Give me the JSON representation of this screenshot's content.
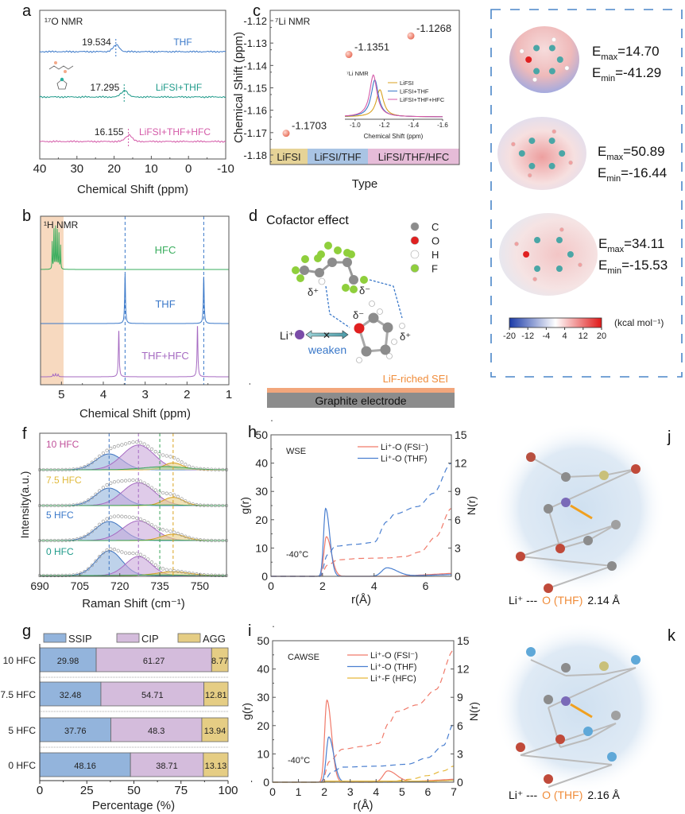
{
  "panel_labels": {
    "a": "a",
    "b": "b",
    "c": "c",
    "d": "d",
    "f": "f",
    "g": "g",
    "h": "h",
    "i": "i",
    "j": "j",
    "k": "k"
  },
  "chart_data": [
    {
      "type": "line",
      "panel": "a",
      "title": "¹⁷O NMR",
      "xlabel": "Chemical Shift (ppm)",
      "xlim": [
        40,
        -10
      ],
      "xticks": [
        "40",
        "30",
        "20",
        "10",
        "0",
        "-10"
      ],
      "series": [
        {
          "name": "THF",
          "peak_ppm": 19.534,
          "peak_label": "19.534",
          "color": "#3a78c9"
        },
        {
          "name": "LiFSI+THF",
          "peak_ppm": 17.295,
          "peak_label": "17.295",
          "color": "#1f9a8a"
        },
        {
          "name": "LiFSI+THF+HFC",
          "peak_ppm": 16.155,
          "peak_label": "16.155",
          "color": "#d45aa8"
        }
      ]
    },
    {
      "type": "scatter",
      "panel": "c",
      "title": "⁷Li NMR",
      "xlabel": "Type",
      "ylabel": "Chemical Shift (ppm)",
      "ylim": [
        -1.184,
        -1.115
      ],
      "yticks": [
        "-1.12",
        "-1.13",
        "-1.14",
        "-1.15",
        "-1.16",
        "-1.17",
        "-1.18"
      ],
      "categories": [
        "LiFSI",
        "LiFSI/THF",
        "LiFSI/THF/HFC"
      ],
      "category_colors": [
        "#e6d397",
        "#a9c4e4",
        "#e6bcd8"
      ],
      "values": [
        -1.1703,
        -1.1351,
        -1.1268
      ],
      "value_labels": [
        "-1.1703",
        "-1.1351",
        "-1.1268"
      ],
      "point_color": "#f08c7a",
      "inset": {
        "type": "line",
        "title": "⁷Li NMR",
        "xlabel": "Chemical Shift (ppm)",
        "xlim": [
          -0.93,
          -1.6
        ],
        "xticks": [
          "-1.0",
          "-1.2",
          "-1.4",
          "-1.6"
        ],
        "series": [
          {
            "name": "LiFSI",
            "peak_ppm": -1.17,
            "height": 0.55,
            "color": "#d9a21f"
          },
          {
            "name": "LiFSI+THF",
            "peak_ppm": -1.135,
            "height": 0.75,
            "color": "#3a78c9"
          },
          {
            "name": "LiFSI+THF+HFC",
            "peak_ppm": -1.125,
            "height": 0.85,
            "color": "#d45aa8"
          }
        ]
      }
    },
    {
      "type": "line",
      "panel": "b",
      "title": "¹H NMR",
      "xlabel": "Chemical Shift (ppm)",
      "xlim": [
        5.5,
        1
      ],
      "xticks": [
        "5",
        "4",
        "3",
        "2",
        "1"
      ],
      "shaded_region_ppm": [
        5.5,
        4.95
      ],
      "reference_lines_ppm": [
        3.48,
        1.6
      ],
      "series": [
        {
          "name": "HFC",
          "color": "#3aae5e",
          "peaks_ppm": [
            5.22,
            5.18,
            5.14,
            5.1,
            5.06,
            5.02
          ],
          "heights": [
            0.55,
            0.8,
            0.85,
            0.78,
            0.72,
            0.48
          ]
        },
        {
          "name": "THF",
          "color": "#3a78c9",
          "peaks_ppm": [
            3.48,
            1.6
          ],
          "heights": [
            1,
            0.95
          ]
        },
        {
          "name": "THF+HFC",
          "color": "#a66bc2",
          "peaks_ppm": [
            3.63,
            1.75,
            5.2,
            5.14,
            5.08
          ],
          "heights": [
            0.95,
            1.05,
            0.05,
            0.06,
            0.05
          ]
        }
      ]
    },
    {
      "type": "area",
      "panel": "f",
      "xlabel": "Raman Shift (cm⁻¹)",
      "ylabel": "Intensity(a.u.)",
      "xlim": [
        690,
        760
      ],
      "xticks": [
        "690",
        "705",
        "720",
        "735",
        "750"
      ],
      "reference_lines_cm": [
        {
          "x": 716,
          "color": "#3f74c0"
        },
        {
          "x": 727,
          "color": "#a66bc2"
        },
        {
          "x": 735,
          "color": "#3aa55a"
        },
        {
          "x": 740,
          "color": "#d9a21f"
        }
      ],
      "component_colors": {
        "SSIP": "#3f74c0",
        "CIP": "#a66bc2",
        "AGG": "#d9a21f",
        "other": "#3aa55a"
      },
      "series": [
        {
          "name": "10 HFC",
          "color": "#c0509a",
          "components": [
            {
              "type": "SSIP",
              "center": 716,
              "amp": 0.5,
              "sigma": 5
            },
            {
              "type": "CIP",
              "center": 727,
              "amp": 0.78,
              "sigma": 6
            },
            {
              "type": "AGG",
              "center": 740,
              "amp": 0.22,
              "sigma": 3.5
            },
            {
              "type": "other",
              "center": 737,
              "amp": 0.1,
              "sigma": 8
            }
          ]
        },
        {
          "name": "7.5 HFC",
          "color": "#e0b93a",
          "components": [
            {
              "type": "SSIP",
              "center": 716,
              "amp": 0.55,
              "sigma": 5
            },
            {
              "type": "CIP",
              "center": 727,
              "amp": 0.72,
              "sigma": 6
            },
            {
              "type": "AGG",
              "center": 740,
              "amp": 0.26,
              "sigma": 3.8
            },
            {
              "type": "other",
              "center": 735,
              "amp": 0.02,
              "sigma": 8
            }
          ]
        },
        {
          "name": "5 HFC",
          "color": "#3a78c9",
          "components": [
            {
              "type": "SSIP",
              "center": 716,
              "amp": 0.6,
              "sigma": 5.2
            },
            {
              "type": "CIP",
              "center": 727,
              "amp": 0.62,
              "sigma": 6
            },
            {
              "type": "AGG",
              "center": 740,
              "amp": 0.2,
              "sigma": 4.5
            },
            {
              "type": "other",
              "center": 735,
              "amp": 0.01,
              "sigma": 8
            }
          ]
        },
        {
          "name": "0 HFC",
          "color": "#1f9a8a",
          "components": [
            {
              "type": "SSIP",
              "center": 716,
              "amp": 0.78,
              "sigma": 4.8
            },
            {
              "type": "CIP",
              "center": 727,
              "amp": 0.6,
              "sigma": 4.8
            },
            {
              "type": "AGG",
              "center": 740,
              "amp": 0.12,
              "sigma": 6
            },
            {
              "type": "other",
              "center": 735,
              "amp": 0.02,
              "sigma": 8
            }
          ]
        }
      ]
    },
    {
      "type": "bar",
      "panel": "g",
      "orientation": "horizontal-stacked",
      "xlabel": "Percentage (%)",
      "xlim": [
        0,
        100
      ],
      "xticks": [
        "0",
        "25",
        "50",
        "75",
        "100"
      ],
      "categories": [
        "10 HFC",
        "7.5 HFC",
        "5 HFC",
        "0 HFC"
      ],
      "series": [
        {
          "name": "SSIP",
          "color": "#93b4dc",
          "values": [
            29.98,
            32.48,
            37.76,
            48.16
          ]
        },
        {
          "name": "CIP",
          "color": "#d4bcdc",
          "values": [
            61.27,
            54.71,
            48.3,
            38.71
          ]
        },
        {
          "name": "AGG",
          "color": "#e5cd84",
          "values": [
            8.77,
            12.81,
            13.94,
            13.13
          ]
        }
      ],
      "legend": "top"
    },
    {
      "type": "line",
      "panel": "h",
      "annotation": "WSE",
      "temperature": "-40°C",
      "xlabel": "r(Å)",
      "ylabel": "g(r)",
      "y2label": "N(r)",
      "xlim": [
        0,
        7
      ],
      "ylim": [
        0,
        50
      ],
      "y2lim": [
        0,
        15
      ],
      "xticks": [
        "0",
        "2",
        "4",
        "6"
      ],
      "yticks": [
        "0",
        "10",
        "20",
        "30",
        "40",
        "50"
      ],
      "y2ticks": [
        "0",
        "3",
        "6",
        "9",
        "12",
        "15"
      ],
      "legend": "top-right",
      "series": [
        {
          "name": "Li⁺-O (FSI⁻)",
          "color": "#f07a6a",
          "g_peaks": [
            {
              "r": 2.15,
              "g": 14,
              "w": 0.12
            }
          ],
          "N": [
            [
              0,
              0
            ],
            [
              1.9,
              0
            ],
            [
              2.2,
              1.2
            ],
            [
              2.6,
              1.75
            ],
            [
              3.5,
              1.9
            ],
            [
              4.5,
              1.95
            ],
            [
              5.2,
              2.1
            ],
            [
              5.8,
              2.6
            ],
            [
              6.4,
              4.2
            ],
            [
              7,
              7.2
            ]
          ]
        },
        {
          "name": "Li⁺-O (THF)",
          "color": "#4a7fd0",
          "g_peaks": [
            {
              "r": 2.12,
              "g": 24,
              "w": 0.1
            },
            {
              "r": 4.5,
              "g": 3,
              "w": 0.25
            }
          ],
          "N": [
            [
              0,
              0
            ],
            [
              1.9,
              0
            ],
            [
              2.2,
              2.3
            ],
            [
              2.5,
              3.2
            ],
            [
              3.3,
              3.4
            ],
            [
              4.0,
              3.6
            ],
            [
              4.5,
              5.8
            ],
            [
              4.8,
              6.6
            ],
            [
              5.7,
              7.4
            ],
            [
              6.3,
              8.8
            ],
            [
              7,
              12
            ]
          ]
        }
      ]
    },
    {
      "type": "line",
      "panel": "i",
      "annotation": "CAWSE",
      "temperature": "-40°C",
      "xlabel": "r(Å)",
      "ylabel": "g(r)",
      "y2label": "N(r)",
      "xlim": [
        0,
        7
      ],
      "ylim": [
        0,
        50
      ],
      "y2lim": [
        0,
        15
      ],
      "xticks": [
        "0",
        "1",
        "2",
        "3",
        "4",
        "5",
        "6",
        "7"
      ],
      "yticks": [
        "0",
        "10",
        "20",
        "30",
        "40",
        "50"
      ],
      "y2ticks": [
        "0",
        "3",
        "6",
        "9",
        "12",
        "15"
      ],
      "legend": "top-right",
      "series": [
        {
          "name": "Li⁺-O (FSI⁻)",
          "color": "#f07a6a",
          "g_peaks": [
            {
              "r": 2.1,
              "g": 29,
              "w": 0.11
            },
            {
              "r": 4.45,
              "g": 4,
              "w": 0.22
            }
          ],
          "N": [
            [
              0,
              0
            ],
            [
              1.9,
              0
            ],
            [
              2.2,
              2.2
            ],
            [
              2.7,
              3.5
            ],
            [
              3.5,
              3.8
            ],
            [
              4.1,
              4.1
            ],
            [
              4.5,
              6.3
            ],
            [
              4.8,
              7.5
            ],
            [
              5.6,
              8.2
            ],
            [
              6.3,
              9.8
            ],
            [
              7,
              14
            ]
          ]
        },
        {
          "name": "Li⁺-O (THF)",
          "color": "#4a7fd0",
          "g_peaks": [
            {
              "r": 2.17,
              "g": 16,
              "w": 0.12
            }
          ],
          "N": [
            [
              0,
              0
            ],
            [
              1.95,
              0
            ],
            [
              2.3,
              1.1
            ],
            [
              2.7,
              1.6
            ],
            [
              4.0,
              1.7
            ],
            [
              5.2,
              1.9
            ],
            [
              6.0,
              2.6
            ],
            [
              6.6,
              3.9
            ],
            [
              7,
              6.2
            ]
          ]
        },
        {
          "name": "Li⁺-F (HFC)",
          "color": "#e6b83a",
          "g_peaks": [],
          "N": [
            [
              0,
              0
            ],
            [
              4.4,
              0
            ],
            [
              5.3,
              0.3
            ],
            [
              6.0,
              0.7
            ],
            [
              6.6,
              1.2
            ],
            [
              7,
              1.7
            ]
          ]
        }
      ]
    }
  ],
  "panel_d": {
    "title": "Cofactor effect",
    "legend": [
      {
        "label": "C",
        "color": "#8c8c8c"
      },
      {
        "label": "O",
        "color": "#e02020"
      },
      {
        "label": "H",
        "color": "#ffffff"
      },
      {
        "label": "F",
        "color": "#8fcf3c"
      }
    ],
    "li_label": "Li⁺",
    "weaken_label": "weaken",
    "delta_plus": "δ⁺",
    "delta_minus": "δ⁻",
    "sei_label": "LiF-riched SEI",
    "electrode_label": "Graphite electrode"
  },
  "esp": {
    "molecules": [
      {
        "emax": "=14.70",
        "emin": "=-41.29"
      },
      {
        "emax": "=50.89",
        "emin": "=-16.44"
      },
      {
        "emax": "=34.11",
        "emin": "=-15.53"
      }
    ],
    "E": "E",
    "max_sub": "max",
    "min_sub": "min",
    "colorbar_ticks": [
      "-20",
      "-12",
      "-4",
      "4",
      "12",
      "20"
    ],
    "colorbar_unit": "(kcal mol⁻¹)",
    "colorbar_colors": [
      "#1a3aa8",
      "#ffffff",
      "#e01818"
    ]
  },
  "md_snapshots": [
    {
      "prefix": "Li⁺ --- ",
      "atom": "O (THF)",
      "distance": "2.14 Å"
    },
    {
      "prefix": "Li⁺ --- ",
      "atom": "O (THF)",
      "distance": "2.16 Å"
    }
  ]
}
